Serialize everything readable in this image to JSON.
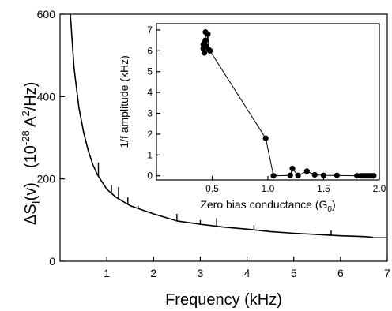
{
  "chart_data": [
    {
      "type": "line",
      "title": "",
      "xlabel": "Frequency (kHz)",
      "ylabel_symbol": "ΔS",
      "ylabel_subscript": "I",
      "ylabel_argument": "(v)",
      "ylabel_units_open": "(10",
      "ylabel_units_exp": "-28",
      "ylabel_units_mid": " A",
      "ylabel_units_sq": "2",
      "ylabel_units_close": "/Hz)",
      "xlim": [
        0,
        7
      ],
      "ylim": [
        0,
        600
      ],
      "x_ticks": [
        1,
        2,
        3,
        4,
        5,
        6,
        7
      ],
      "y_ticks": [
        0,
        200,
        400,
        600
      ],
      "grid": false,
      "series": [
        {
          "x": [
            0.22,
            0.3,
            0.4,
            0.5,
            0.6,
            0.7,
            0.8,
            1.0,
            1.2,
            1.5,
            2.0,
            2.5,
            3.0,
            3.5,
            4.0,
            4.5,
            5.0,
            5.5,
            6.0,
            6.5,
            6.7
          ],
          "y": [
            600,
            470,
            375,
            315,
            270,
            235,
            210,
            175,
            155,
            135,
            115,
            98,
            90,
            83,
            78,
            72,
            68,
            65,
            62,
            60,
            58
          ],
          "spikes": [
            {
              "x": 0.45,
              "y": 335
            },
            {
              "x": 0.6,
              "y": 275
            },
            {
              "x": 0.82,
              "y": 240
            },
            {
              "x": 1.1,
              "y": 185
            },
            {
              "x": 1.25,
              "y": 180
            },
            {
              "x": 1.45,
              "y": 155
            },
            {
              "x": 1.67,
              "y": 135
            },
            {
              "x": 2.5,
              "y": 115
            },
            {
              "x": 3.0,
              "y": 100
            },
            {
              "x": 3.35,
              "y": 105
            },
            {
              "x": 4.15,
              "y": 88
            },
            {
              "x": 5.8,
              "y": 75
            }
          ]
        },
        {
          "x": [
            6.7,
            7.0
          ],
          "y": [
            58,
            58
          ],
          "style": "fit"
        }
      ]
    },
    {
      "type": "scatter",
      "title": "",
      "xlabel": "Zero bias conductance (G",
      "xlabel_subscript": "0",
      "xlabel_close": ")",
      "ylabel": "1/f amplitude (kHz)",
      "xlim": [
        0.0,
        2.0
      ],
      "ylim": [
        -0.2,
        7.3
      ],
      "x_ticks": [
        "0.5",
        "1.0",
        "1.5",
        "2.0"
      ],
      "y_ticks": [
        "0",
        "1",
        "2",
        "3",
        "4",
        "5",
        "6",
        "7"
      ],
      "grid": false,
      "series": [
        {
          "x": [
            0.42,
            0.42,
            0.43,
            0.43,
            0.44,
            0.44,
            0.45,
            0.46,
            0.47,
            0.48,
            0.98,
            1.05,
            1.2,
            1.22,
            1.27,
            1.35,
            1.42,
            1.5,
            1.62,
            1.8,
            1.83,
            1.85,
            1.87,
            1.89,
            1.91,
            1.93,
            1.95
          ],
          "y": [
            6.3,
            6.1,
            6.4,
            5.9,
            6.9,
            6.5,
            6.2,
            6.8,
            6.05,
            6.0,
            1.8,
            0.0,
            0.02,
            0.35,
            0.02,
            0.22,
            0.05,
            0.02,
            0.02,
            0.0,
            0.0,
            0.0,
            0.0,
            0.0,
            0.0,
            0.0,
            0.0
          ]
        }
      ]
    }
  ]
}
